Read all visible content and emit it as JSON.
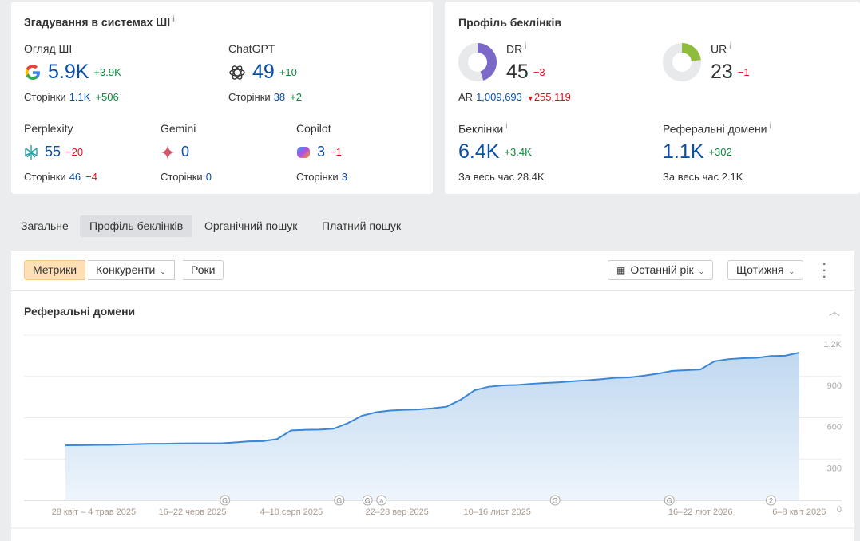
{
  "ai": {
    "title": "Згадування в системах ШІ",
    "info": "i",
    "overview": {
      "label": "Огляд ШІ",
      "value": "5.9K",
      "delta": "+3.9K",
      "pages_label": "Сторінки",
      "pages": "1.1K",
      "pages_delta": "+506"
    },
    "chatgpt": {
      "label": "ChatGPT",
      "value": "49",
      "delta": "+10",
      "pages_label": "Сторінки",
      "pages": "38",
      "pages_delta": "+2"
    },
    "perplexity": {
      "label": "Perplexity",
      "value": "55",
      "delta": "−20",
      "pages_label": "Сторінки",
      "pages": "46",
      "pages_delta": "−4"
    },
    "gemini": {
      "label": "Gemini",
      "value": "0",
      "pages_label": "Сторінки",
      "pages": "0"
    },
    "copilot": {
      "label": "Copilot",
      "value": "3",
      "delta": "−1",
      "pages_label": "Сторінки",
      "pages": "3"
    }
  },
  "backlinks": {
    "title": "Профіль беклінків",
    "dr": {
      "label": "DR",
      "value": "45",
      "delta": "−3",
      "fill": 45,
      "color": "#7b68c8"
    },
    "ur": {
      "label": "UR",
      "value": "23",
      "delta": "−1",
      "fill": 23,
      "color": "#8fbc3c"
    },
    "ar": {
      "label": "AR",
      "value": "1,009,693",
      "delta": "255,119"
    },
    "links": {
      "label": "Беклінки",
      "value": "6.4K",
      "delta": "+3.4K",
      "all_label": "За весь час",
      "all": "28.4K"
    },
    "refdomains": {
      "label": "Реферальні домени",
      "value": "1.1K",
      "delta": "+302",
      "all_label": "За весь час",
      "all": "2.1K"
    }
  },
  "tabs": [
    {
      "label": "Загальне"
    },
    {
      "label": "Профіль беклінків",
      "active": true
    },
    {
      "label": "Органічний пошук"
    },
    {
      "label": "Платний пошук"
    }
  ],
  "toolbar": {
    "metrics": "Метрики",
    "competitors": "Конкуренти",
    "years": "Роки",
    "period": "Останній рік",
    "interval": "Щотижня"
  },
  "chart_data": {
    "type": "area",
    "title": "Реферальні домени",
    "ylim": [
      0,
      1200
    ],
    "yticks": [
      "0",
      "300",
      "600",
      "900",
      "1.2K"
    ],
    "color": "#3a87d8",
    "values": [
      400,
      401,
      402,
      403,
      405,
      408,
      411,
      411,
      413,
      414,
      414,
      414,
      420,
      428,
      430,
      445,
      508,
      512,
      514,
      520,
      560,
      614,
      640,
      652,
      657,
      660,
      668,
      680,
      730,
      800,
      825,
      835,
      838,
      846,
      852,
      857,
      865,
      872,
      880,
      890,
      893,
      905,
      920,
      940,
      945,
      950,
      1010,
      1025,
      1032,
      1035,
      1048,
      1050,
      1072
    ],
    "xticks": [
      {
        "i": 2,
        "label": "28 квіт – 4 трав 2025"
      },
      {
        "i": 9,
        "label": "16–22 черв 2025"
      },
      {
        "i": 16,
        "label": "4–10 серп 2025"
      },
      {
        "i": 23.5,
        "label": "22–28 вер 2025"
      },
      {
        "i": 30.6,
        "label": "10–16 лист 2025"
      },
      {
        "i": 45,
        "label": "16–22 лют 2026"
      },
      {
        "i": 52,
        "label": "6–8 квіт 2026"
      }
    ],
    "annotations": [
      {
        "i": 11.3,
        "label": "G"
      },
      {
        "i": 19.4,
        "label": "G"
      },
      {
        "i": 21.4,
        "label": "G"
      },
      {
        "i": 22.4,
        "label": "a"
      },
      {
        "i": 34.7,
        "label": "G"
      },
      {
        "i": 42.8,
        "label": "G"
      },
      {
        "i": 50,
        "label": "2"
      }
    ]
  }
}
